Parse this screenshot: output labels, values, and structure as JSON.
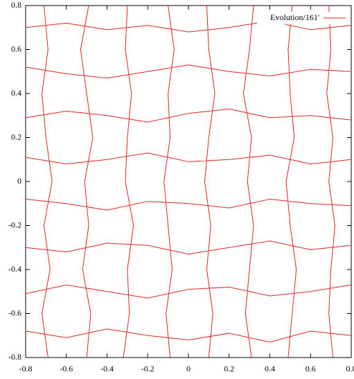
{
  "chart_data": {
    "type": "line",
    "series": [
      {
        "name": "Evolution/161'",
        "color": "#e02020",
        "x": [
          -0.8,
          -0.6,
          -0.4,
          -0.2,
          0,
          0.2,
          0.4,
          0.6,
          0.8,
          null,
          -0.8,
          -0.6,
          -0.4,
          -0.2,
          0,
          0.2,
          0.4,
          0.6,
          0.8,
          null,
          -0.8,
          -0.6,
          -0.4,
          -0.2,
          0,
          0.2,
          0.4,
          0.6,
          0.8,
          null,
          -0.8,
          -0.6,
          -0.4,
          -0.2,
          0,
          0.2,
          0.4,
          0.6,
          0.8,
          null,
          -0.8,
          -0.6,
          -0.4,
          -0.2,
          0,
          0.2,
          0.4,
          0.6,
          0.8,
          null,
          -0.8,
          -0.6,
          -0.4,
          -0.2,
          0,
          0.2,
          0.4,
          0.6,
          0.8,
          null,
          -0.8,
          -0.6,
          -0.4,
          -0.2,
          0,
          0.2,
          0.4,
          0.6,
          0.8,
          null,
          -0.8,
          -0.6,
          -0.4,
          -0.2,
          0,
          0.2,
          0.4,
          0.6,
          0.8,
          null,
          -0.69,
          -0.72,
          -0.68,
          -0.71,
          -0.67,
          -0.7,
          -0.72,
          -0.69,
          -0.71,
          null,
          -0.5,
          -0.48,
          -0.52,
          -0.49,
          -0.51,
          -0.47,
          -0.5,
          -0.53,
          -0.49,
          null,
          -0.32,
          -0.29,
          -0.3,
          -0.27,
          -0.31,
          -0.3,
          -0.28,
          -0.31,
          -0.3,
          null,
          -0.09,
          -0.11,
          -0.08,
          -0.1,
          -0.12,
          -0.09,
          -0.1,
          -0.07,
          -0.1,
          null,
          0.1,
          0.12,
          0.09,
          0.11,
          0.08,
          0.1,
          0.13,
          0.1,
          0.09,
          null,
          0.31,
          0.28,
          0.3,
          0.32,
          0.29,
          0.31,
          0.27,
          0.3,
          0.32,
          null,
          0.49,
          0.51,
          0.53,
          0.5,
          0.48,
          0.52,
          0.5,
          0.49,
          0.51,
          null,
          0.71,
          0.69,
          0.7,
          0.72,
          0.69,
          0.71,
          0.68,
          0.7,
          0.69
        ],
        "y": [
          -0.68,
          -0.71,
          -0.67,
          -0.7,
          -0.72,
          -0.69,
          -0.73,
          -0.68,
          -0.7,
          null,
          -0.51,
          -0.47,
          -0.5,
          -0.53,
          -0.49,
          -0.48,
          -0.52,
          -0.5,
          -0.47,
          null,
          -0.3,
          -0.32,
          -0.28,
          -0.29,
          -0.33,
          -0.3,
          -0.27,
          -0.31,
          -0.29,
          null,
          -0.08,
          -0.1,
          -0.13,
          -0.09,
          -0.1,
          -0.12,
          -0.08,
          -0.1,
          -0.11,
          null,
          0.11,
          0.08,
          0.1,
          0.13,
          0.09,
          0.1,
          0.12,
          0.08,
          0.1,
          null,
          0.29,
          0.32,
          0.3,
          0.27,
          0.31,
          0.33,
          0.29,
          0.3,
          0.28,
          null,
          0.52,
          0.49,
          0.47,
          0.5,
          0.53,
          0.5,
          0.48,
          0.51,
          0.5,
          null,
          0.7,
          0.72,
          0.69,
          0.71,
          0.68,
          0.7,
          0.73,
          0.69,
          0.71,
          null,
          -0.8,
          -0.6,
          -0.4,
          -0.2,
          0,
          0.2,
          0.4,
          0.6,
          0.8,
          null,
          -0.8,
          -0.6,
          -0.4,
          -0.2,
          0,
          0.2,
          0.4,
          0.6,
          0.8,
          null,
          -0.8,
          -0.6,
          -0.4,
          -0.2,
          0,
          0.2,
          0.4,
          0.6,
          0.8,
          null,
          -0.8,
          -0.6,
          -0.4,
          -0.2,
          0,
          0.2,
          0.4,
          0.6,
          0.8,
          null,
          -0.8,
          -0.6,
          -0.4,
          -0.2,
          0,
          0.2,
          0.4,
          0.6,
          0.8,
          null,
          -0.8,
          -0.6,
          -0.4,
          -0.2,
          0,
          0.2,
          0.4,
          0.6,
          0.8,
          null,
          -0.8,
          -0.6,
          -0.4,
          -0.2,
          0,
          0.2,
          0.4,
          0.6,
          0.8,
          null,
          -0.8,
          -0.6,
          -0.4,
          -0.2,
          0,
          0.2,
          0.4,
          0.6,
          0.8
        ]
      }
    ],
    "xlim": [
      -0.8,
      0.8
    ],
    "ylim": [
      -0.8,
      0.8
    ],
    "xticks": [
      -0.8,
      -0.6,
      -0.4,
      -0.2,
      0,
      0.2,
      0.4,
      0.6,
      0.8
    ],
    "yticks": [
      -0.8,
      -0.6,
      -0.4,
      -0.2,
      0,
      0.2,
      0.4,
      0.6,
      0.8
    ],
    "grid": false,
    "legend": "top-right"
  }
}
